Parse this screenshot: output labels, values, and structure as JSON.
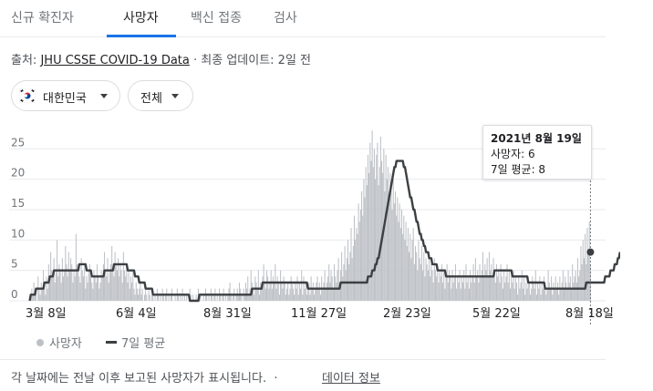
{
  "tabs": [
    {
      "label": "신규 확진자"
    },
    {
      "label": "사망자"
    },
    {
      "label": "백신 접종"
    },
    {
      "label": "검사"
    }
  ],
  "source": {
    "prefix": "출처:",
    "link": "JHU CSSE COVID-19 Data",
    "suffix": "· 최종 업데이트: 2일 전"
  },
  "filters": {
    "country": "대한민국",
    "region": "전체"
  },
  "tooltip": {
    "date": "2021년 8월 19일",
    "deaths_line": "사망자: 6",
    "avg_line": "7일 평균: 8"
  },
  "legend": {
    "deaths": "사망자",
    "average": "7일 평균"
  },
  "footer": {
    "note": "각 날짜에는 전날 이후 보고된 사망자가 표시됩니다.",
    "separator": "·",
    "link": "데이터 정보"
  },
  "colors": {
    "bars": "#bdc1c6",
    "average_line": "#3c4043",
    "active_tab": "#1a73e8"
  },
  "chart_data": {
    "type": "bar",
    "x_range": [
      "2020-03-01",
      "2021-08-19"
    ],
    "y_ticks": [
      0,
      5,
      10,
      15,
      20,
      25
    ],
    "ylim": [
      0,
      28
    ],
    "x_tick_labels": [
      "3월 8일",
      "6월 4일",
      "8월 31일",
      "11월 27일",
      "2월 23일",
      "5월 22일",
      "8월 18일"
    ],
    "grid": true,
    "legend_position": "bottom-left",
    "series": [
      {
        "name": "사망자",
        "kind": "bar",
        "description": "daily deaths",
        "values": [
          0,
          1,
          2,
          1,
          3,
          1,
          2,
          0,
          4,
          2,
          1,
          3,
          2,
          5,
          3,
          1,
          4,
          2,
          6,
          3,
          8,
          5,
          4,
          7,
          3,
          5,
          10,
          4,
          6,
          5,
          3,
          7,
          4,
          5,
          9,
          6,
          4,
          8,
          5,
          7,
          6,
          3,
          5,
          4,
          11,
          6,
          5,
          4,
          3,
          7,
          5,
          4,
          6,
          2,
          4,
          3,
          5,
          6,
          4,
          3,
          2,
          5,
          4,
          3,
          6,
          4,
          2,
          3,
          5,
          4,
          6,
          8,
          5,
          4,
          7,
          3,
          5,
          6,
          9,
          5,
          4,
          8,
          6,
          5,
          7,
          4,
          6,
          5,
          3,
          8,
          5,
          4,
          6,
          3,
          5,
          2,
          4,
          3,
          5,
          2,
          1,
          3,
          2,
          1,
          2,
          3,
          1,
          2,
          0,
          1,
          2,
          1,
          0,
          2,
          1,
          0,
          1,
          2,
          0,
          1,
          0,
          2,
          1,
          0,
          1,
          0,
          2,
          1,
          0,
          1,
          2,
          0,
          1,
          0,
          1,
          2,
          0,
          0,
          1,
          0,
          2,
          1,
          0,
          1,
          0,
          2,
          0,
          1,
          0,
          1,
          0,
          0,
          2,
          1,
          0,
          1,
          0,
          0,
          1,
          0,
          2,
          0,
          1,
          0,
          0,
          1,
          0,
          2,
          1,
          0,
          1,
          0,
          2,
          1,
          0,
          1,
          2,
          0,
          1,
          0,
          2,
          1,
          0,
          1,
          2,
          0,
          1,
          0,
          1,
          2,
          3,
          1,
          0,
          1,
          2,
          0,
          1,
          2,
          1,
          3,
          2,
          1,
          0,
          2,
          1,
          3,
          2,
          4,
          1,
          2,
          5,
          3,
          2,
          1,
          4,
          3,
          2,
          5,
          1,
          3,
          2,
          4,
          6,
          3,
          2,
          5,
          4,
          2,
          3,
          5,
          2,
          4,
          3,
          6,
          2,
          4,
          3,
          1,
          5,
          3,
          2,
          4,
          3,
          1,
          2,
          3,
          1,
          2,
          4,
          3,
          2,
          1,
          3,
          2,
          4,
          1,
          3,
          2,
          5,
          1,
          4,
          2,
          3,
          1,
          2,
          3,
          1,
          4,
          2,
          3,
          1,
          2,
          3,
          4,
          2,
          3,
          1,
          4,
          2,
          3,
          5,
          2,
          3,
          4,
          6,
          3,
          5,
          4,
          2,
          6,
          4,
          3,
          5,
          7,
          3,
          5,
          8,
          4,
          6,
          9,
          5,
          7,
          10,
          6,
          8,
          12,
          7,
          9,
          14,
          10,
          12,
          11,
          16,
          13,
          15,
          18,
          14,
          20,
          17,
          22,
          19,
          24,
          21,
          26,
          23,
          28,
          22,
          25,
          20,
          24,
          26,
          19,
          22,
          27,
          23,
          21,
          25,
          18,
          24,
          20,
          22,
          17,
          21,
          19,
          15,
          20,
          16,
          18,
          14,
          17,
          13,
          16,
          12,
          15,
          11,
          14,
          10,
          13,
          9,
          12,
          8,
          11,
          7,
          10,
          12,
          6,
          9,
          8,
          5,
          10,
          7,
          6,
          9,
          5,
          8,
          4,
          7,
          6,
          5,
          8,
          4,
          6,
          5,
          3,
          7,
          5,
          4,
          6,
          3,
          5,
          4,
          6,
          3,
          5,
          2,
          4,
          6,
          3,
          5,
          4,
          2,
          5,
          3,
          4,
          6,
          2,
          4,
          3,
          5,
          2,
          4,
          3,
          5,
          2,
          6,
          3,
          4,
          2,
          5,
          3,
          4,
          6,
          3,
          7,
          4,
          5,
          3,
          6,
          4,
          5,
          8,
          4,
          6,
          5,
          7,
          4,
          8,
          5,
          6,
          4,
          7,
          5,
          3,
          6,
          4,
          5,
          3,
          6,
          4,
          2,
          5,
          3,
          4,
          6,
          3,
          5,
          2,
          4,
          3,
          5,
          2,
          4,
          3,
          1,
          4,
          2,
          3,
          5,
          2,
          4,
          1,
          3,
          2,
          4,
          3,
          1,
          2,
          4,
          3,
          2,
          5,
          1,
          3,
          2,
          4,
          1,
          3,
          2,
          4,
          3,
          1,
          2,
          5,
          3,
          2,
          4,
          1,
          3,
          2,
          4,
          2,
          3,
          1,
          4,
          2,
          3,
          5,
          2,
          4,
          3,
          2,
          5,
          3,
          4,
          2,
          6,
          3,
          4,
          5,
          3,
          7,
          4,
          5,
          9,
          6,
          10,
          7,
          11,
          6,
          12,
          8,
          13,
          6
        ],
        "final_value": 6
      },
      {
        "name": "7일 평균",
        "kind": "line",
        "description": "7-day average",
        "values": [
          0,
          1,
          1,
          1,
          1,
          1,
          2,
          2,
          2,
          2,
          2,
          2,
          2,
          2,
          3,
          3,
          3,
          3,
          3,
          4,
          4,
          4,
          4,
          5,
          5,
          5,
          5,
          5,
          5,
          5,
          5,
          5,
          5,
          5,
          5,
          5,
          5,
          5,
          5,
          5,
          5,
          5,
          5,
          5,
          5,
          5,
          5,
          6,
          6,
          6,
          6,
          6,
          6,
          6,
          5,
          5,
          5,
          5,
          5,
          4,
          4,
          4,
          4,
          4,
          4,
          4,
          4,
          4,
          4,
          4,
          4,
          5,
          5,
          5,
          5,
          5,
          5,
          5,
          5,
          5,
          6,
          6,
          6,
          6,
          6,
          6,
          6,
          6,
          6,
          6,
          6,
          6,
          6,
          5,
          5,
          5,
          5,
          5,
          5,
          5,
          4,
          4,
          4,
          4,
          3,
          3,
          3,
          3,
          3,
          3,
          2,
          2,
          2,
          2,
          2,
          2,
          2,
          1,
          1,
          1,
          1,
          1,
          1,
          1,
          1,
          1,
          1,
          1,
          1,
          1,
          1,
          1,
          1,
          1,
          1,
          1,
          1,
          1,
          1,
          1,
          1,
          1,
          1,
          1,
          1,
          1,
          1,
          1,
          1,
          1,
          1,
          1,
          0,
          0,
          0,
          0,
          0,
          0,
          0,
          0,
          0,
          1,
          1,
          1,
          1,
          1,
          1,
          1,
          1,
          1,
          1,
          1,
          1,
          1,
          1,
          1,
          1,
          1,
          1,
          1,
          1,
          1,
          1,
          1,
          1,
          1,
          1,
          1,
          1,
          1,
          1,
          1,
          1,
          1,
          1,
          1,
          1,
          1,
          1,
          1,
          1,
          1,
          1,
          1,
          1,
          1,
          1,
          1,
          1,
          1,
          1,
          2,
          2,
          2,
          2,
          2,
          2,
          2,
          2,
          2,
          2,
          3,
          3,
          3,
          3,
          3,
          3,
          3,
          3,
          3,
          3,
          3,
          3,
          3,
          3,
          3,
          3,
          3,
          3,
          3,
          3,
          3,
          3,
          3,
          3,
          3,
          3,
          3,
          3,
          3,
          3,
          3,
          3,
          3,
          3,
          3,
          3,
          3,
          3,
          3,
          3,
          3,
          3,
          3,
          2,
          2,
          2,
          2,
          2,
          2,
          2,
          2,
          2,
          2,
          2,
          2,
          2,
          2,
          2,
          2,
          2,
          2,
          2,
          2,
          2,
          2,
          2,
          2,
          2,
          2,
          2,
          2,
          2,
          2,
          2,
          3,
          3,
          3,
          3,
          3,
          3,
          3,
          3,
          3,
          3,
          3,
          3,
          3,
          3,
          3,
          3,
          3,
          3,
          3,
          3,
          3,
          3,
          3,
          3,
          3,
          3,
          4,
          4,
          4,
          4,
          5,
          5,
          5,
          6,
          6,
          7,
          7,
          8,
          9,
          10,
          11,
          12,
          13,
          14,
          15,
          16,
          17,
          18,
          19,
          20,
          21,
          22,
          22,
          23,
          23,
          23,
          23,
          23,
          23,
          23,
          22,
          22,
          21,
          20,
          19,
          18,
          17,
          17,
          16,
          15,
          15,
          14,
          13,
          13,
          12,
          11,
          11,
          10,
          10,
          9,
          9,
          8,
          8,
          8,
          7,
          7,
          7,
          6,
          6,
          6,
          6,
          6,
          5,
          5,
          5,
          5,
          5,
          5,
          5,
          5,
          4,
          4,
          4,
          4,
          4,
          4,
          4,
          4,
          4,
          4,
          4,
          4,
          4,
          4,
          4,
          4,
          4,
          4,
          4,
          4,
          4,
          4,
          4,
          4,
          4,
          4,
          4,
          4,
          4,
          4,
          4,
          4,
          4,
          4,
          4,
          4,
          4,
          4,
          4,
          4,
          4,
          4,
          4,
          4,
          4,
          4,
          5,
          5,
          5,
          5,
          5,
          5,
          5,
          5,
          5,
          5,
          5,
          5,
          5,
          5,
          5,
          5,
          5,
          4,
          4,
          4,
          4,
          4,
          4,
          4,
          4,
          4,
          4,
          4,
          4,
          4,
          4,
          4,
          3,
          3,
          3,
          3,
          3,
          3,
          3,
          3,
          3,
          3,
          3,
          3,
          3,
          3,
          3,
          3,
          2,
          2,
          2,
          2,
          2,
          2,
          2,
          2,
          2,
          2,
          2,
          2,
          2,
          2,
          2,
          2,
          2,
          2,
          2,
          2,
          2,
          2,
          2,
          2,
          2,
          2,
          2,
          2,
          2,
          2,
          2,
          2,
          2,
          2,
          2,
          2,
          2,
          2,
          2,
          3,
          3,
          3,
          3,
          3,
          3,
          3,
          3,
          3,
          3,
          3,
          3,
          3,
          3,
          3,
          3,
          3,
          3,
          4,
          4,
          4,
          4,
          4,
          5,
          5,
          5,
          5,
          6,
          6,
          6,
          7,
          7,
          8
        ],
        "final_value": 8
      }
    ]
  }
}
